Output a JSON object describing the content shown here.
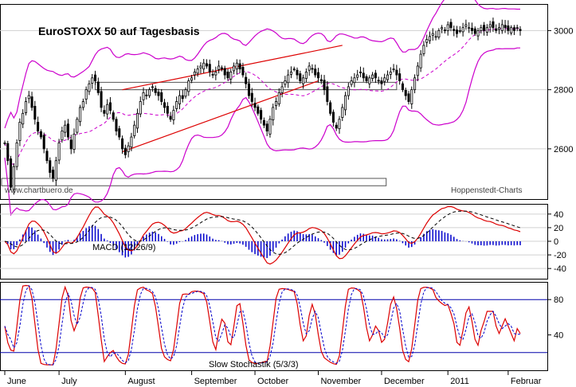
{
  "chart_data": [
    {
      "type": "candlestick",
      "title": "EuroSTOXX 50 auf Tagesbasis",
      "source_left": "www.chartbuero.de",
      "source_right": "Hoppenstedt-Charts",
      "y_ticks": [
        2600,
        2800,
        3000
      ],
      "y_range": [
        2430,
        3090
      ],
      "x_labels": [
        "June",
        "July",
        "August",
        "September",
        "October",
        "November",
        "December",
        "2011",
        "Februar"
      ],
      "x_label_days": [
        0,
        18,
        40,
        62,
        83,
        104,
        125,
        147,
        167
      ],
      "total_days": 172,
      "closes": [
        2620,
        2560,
        2470,
        2540,
        2620,
        2690,
        2720,
        2760,
        2780,
        2740,
        2700,
        2660,
        2640,
        2600,
        2560,
        2520,
        2500,
        2560,
        2620,
        2660,
        2680,
        2640,
        2600,
        2650,
        2700,
        2740,
        2760,
        2800,
        2820,
        2840,
        2830,
        2790,
        2740,
        2720,
        2750,
        2730,
        2700,
        2660,
        2640,
        2600,
        2580,
        2610,
        2640,
        2680,
        2720,
        2760,
        2790,
        2780,
        2800,
        2810,
        2790,
        2780,
        2760,
        2740,
        2720,
        2700,
        2730,
        2760,
        2780,
        2770,
        2800,
        2830,
        2840,
        2860,
        2870,
        2880,
        2890,
        2880,
        2860,
        2850,
        2860,
        2880,
        2870,
        2850,
        2840,
        2860,
        2880,
        2890,
        2870,
        2850,
        2820,
        2780,
        2760,
        2740,
        2720,
        2700,
        2680,
        2660,
        2700,
        2740,
        2760,
        2790,
        2810,
        2830,
        2850,
        2860,
        2870,
        2850,
        2830,
        2840,
        2860,
        2880,
        2870,
        2850,
        2840,
        2830,
        2800,
        2760,
        2720,
        2690,
        2670,
        2700,
        2740,
        2780,
        2810,
        2830,
        2840,
        2850,
        2860,
        2840,
        2830,
        2840,
        2850,
        2840,
        2830,
        2820,
        2840,
        2850,
        2860,
        2870,
        2850,
        2830,
        2800,
        2780,
        2760,
        2800,
        2840,
        2880,
        2920,
        2950,
        2970,
        2980,
        2990,
        2980,
        3000,
        3010,
        3000,
        3020,
        3010,
        3000,
        2990,
        3000,
        3010,
        3020,
        3010,
        3000,
        2990,
        3000,
        3010,
        3000,
        3010,
        3020,
        3010,
        3000,
        3010,
        3020,
        3010,
        3000,
        3010,
        3000,
        3010,
        3000
      ],
      "resistance_box": [
        2800,
        2825
      ],
      "support_box": [
        2475,
        2500
      ],
      "macd": {
        "label": "MACD (12/26/9)",
        "y_ticks": [
          40,
          20,
          0,
          -20,
          -40
        ],
        "y_range": [
          -55,
          55
        ]
      },
      "stochastic": {
        "label": "Slow Stochastik (5/3/3)",
        "y_ticks": [
          80,
          40
        ],
        "lines": [
          80,
          20
        ],
        "y_range": [
          0,
          100
        ]
      }
    }
  ]
}
